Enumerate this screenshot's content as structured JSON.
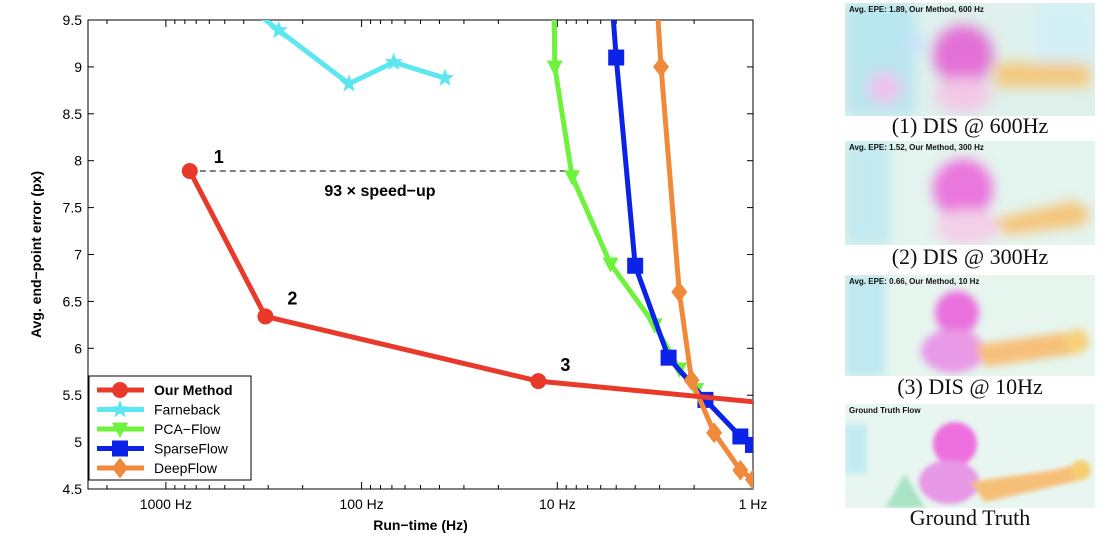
{
  "chart_data": {
    "type": "line",
    "xlabel": "Run−time (Hz)",
    "ylabel": "Avg. end−point error (px)",
    "xscale": "log-reversed",
    "xlim": [
      2500,
      1
    ],
    "ylim": [
      4.5,
      9.5
    ],
    "xticks": [
      {
        "value": 1000,
        "label": "1000 Hz"
      },
      {
        "value": 100,
        "label": "100 Hz"
      },
      {
        "value": 10,
        "label": "10 Hz"
      },
      {
        "value": 1,
        "label": "1 Hz"
      }
    ],
    "yticks": [
      {
        "value": 4.5,
        "label": "4.5"
      },
      {
        "value": 5,
        "label": "5"
      },
      {
        "value": 5.5,
        "label": "5.5"
      },
      {
        "value": 6,
        "label": "6"
      },
      {
        "value": 6.5,
        "label": "6.5"
      },
      {
        "value": 7,
        "label": "7"
      },
      {
        "value": 7.5,
        "label": "7.5"
      },
      {
        "value": 8,
        "label": "8"
      },
      {
        "value": 8.5,
        "label": "8.5"
      },
      {
        "value": 9,
        "label": "9"
      },
      {
        "value": 9.5,
        "label": "9.5"
      }
    ],
    "legend_position": "bottom-left",
    "series": [
      {
        "name": "Our Method",
        "color": "#e8392b",
        "marker": "circle",
        "bold": true,
        "x": [
          755,
          310,
          12.5
        ],
        "y": [
          7.89,
          6.34,
          5.65
        ],
        "line_extra": [
          [
            1,
            5.43
          ]
        ],
        "point_labels": [
          "1",
          "2",
          "3"
        ]
      },
      {
        "name": "Farneback",
        "color": "#5ce7f0",
        "marker": "star",
        "x": [
          410,
          265,
          116,
          68.5,
          37.5
        ],
        "y": [
          9.7,
          9.39,
          8.82,
          9.05,
          8.88
        ]
      },
      {
        "name": "PCA−Flow",
        "color": "#6ef33c",
        "marker": "triangle-down",
        "x": [
          10.4,
          10.3,
          8.4,
          5.35,
          3.18,
          2.38,
          1.95
        ],
        "y": [
          9.8,
          9.0,
          7.83,
          6.9,
          6.25,
          5.78,
          5.56
        ]
      },
      {
        "name": "SparseFlow",
        "color": "#0b22e8",
        "marker": "square",
        "x": [
          5.3,
          5.0,
          4.0,
          2.7,
          1.75,
          1.16,
          1.0
        ],
        "y": [
          9.8,
          9.1,
          6.88,
          5.9,
          5.45,
          5.06,
          4.97
        ]
      },
      {
        "name": "DeepFlow",
        "color": "#f0893a",
        "marker": "diamond",
        "x": [
          3.12,
          2.95,
          2.38,
          2.06,
          1.58,
          1.16,
          1.0
        ],
        "y": [
          9.8,
          9.0,
          6.6,
          5.66,
          5.1,
          4.7,
          4.6
        ]
      }
    ],
    "annotation": {
      "text": "93 × speed−up",
      "from": [
        755,
        7.89
      ],
      "to": [
        8.3,
        7.89
      ],
      "style": "dashed"
    }
  },
  "panels": [
    {
      "label": "Avg. EPE: 1.89, Our Method, 600 Hz",
      "caption": "(1) DIS @ 600Hz"
    },
    {
      "label": "Avg. EPE: 1.52, Our Method, 300 Hz",
      "caption": "(2) DIS @ 300Hz"
    },
    {
      "label": "Avg. EPE: 0.66, Our Method, 10 Hz",
      "caption": "(3) DIS @ 10Hz"
    },
    {
      "label": "Ground Truth Flow",
      "caption": "Ground Truth"
    }
  ]
}
